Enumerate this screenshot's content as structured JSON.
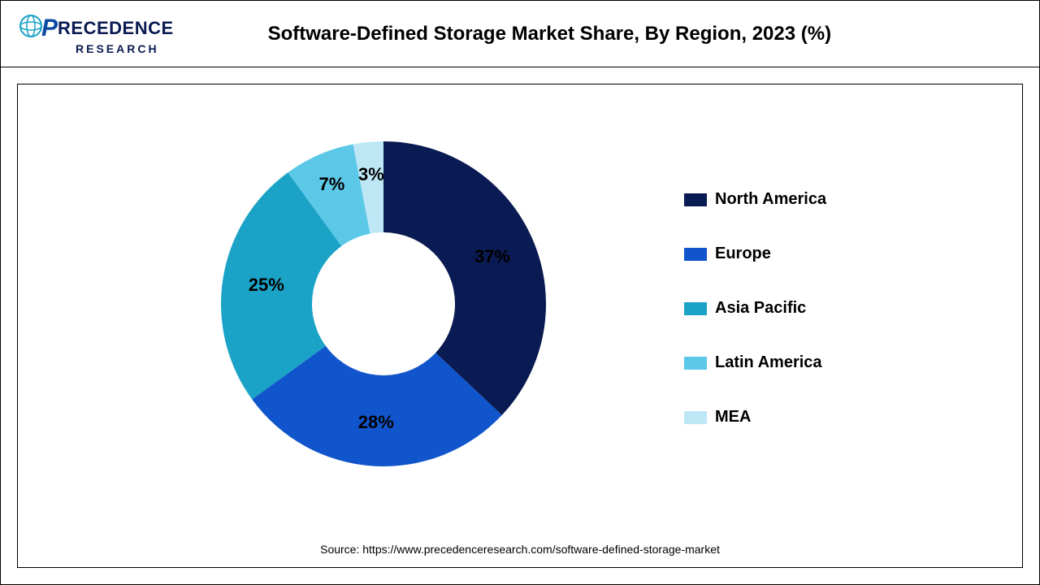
{
  "logo": {
    "word1_first": "P",
    "word1_rest": "RECEDENCE",
    "word2": "RESEARCH"
  },
  "title": "Software-Defined Storage Market Share, By Region, 2023 (%)",
  "source": "Source: https://www.precedenceresearch.com/software-defined-storage-market",
  "chart": {
    "type": "donut",
    "start_angle_deg": 0,
    "inner_radius_ratio": 0.4,
    "background_color": "#ffffff",
    "border_color": "#000000",
    "label_fontsize": 22,
    "label_fontweight": 700,
    "label_color": "#000000",
    "legend_fontsize": 20,
    "legend_fontweight": 700,
    "slices": [
      {
        "label": "North America",
        "value": 37,
        "display": "37%",
        "color": "#0a1a52"
      },
      {
        "label": "Europe",
        "value": 28,
        "display": "28%",
        "color": "#1155cc"
      },
      {
        "label": "Asia Pacific",
        "value": 25,
        "display": "25%",
        "color": "#1aa3c6"
      },
      {
        "label": "Latin America",
        "value": 7,
        "display": "7%",
        "color": "#5cc8e8"
      },
      {
        "label": "MEA",
        "value": 3,
        "display": "3%",
        "color": "#bde7f5"
      }
    ]
  }
}
